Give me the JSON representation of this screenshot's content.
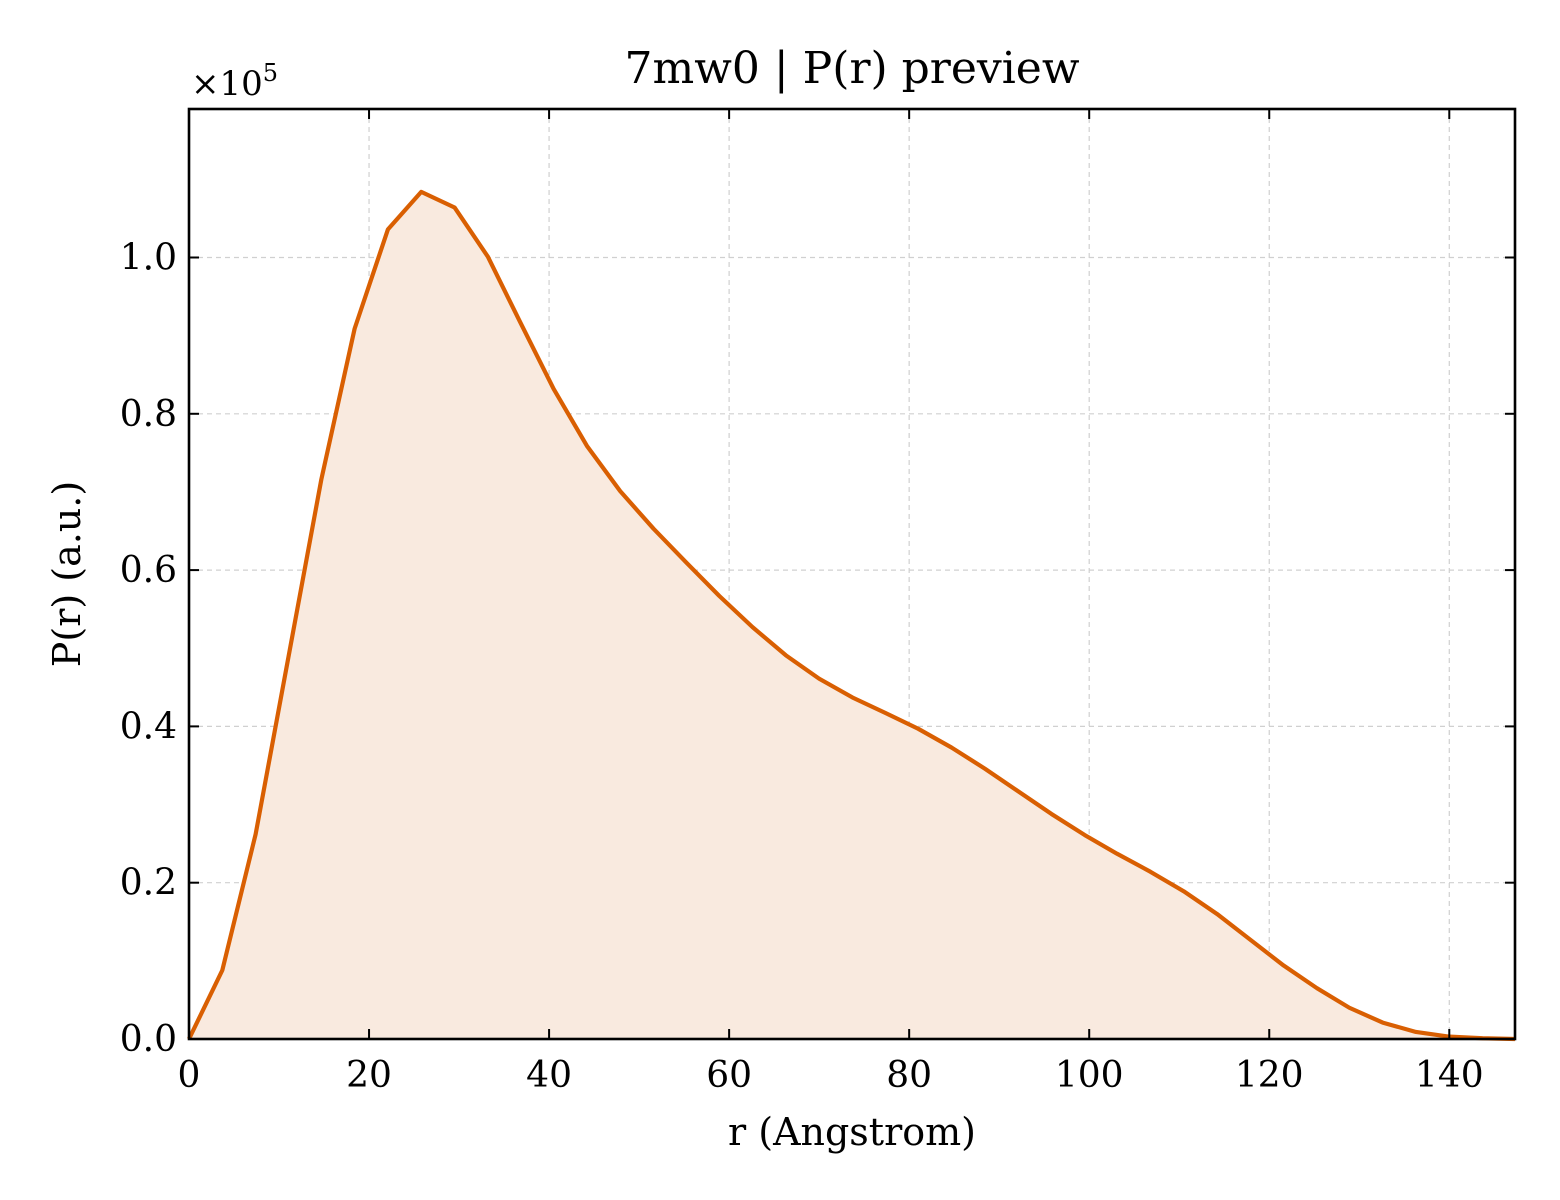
{
  "chart_data": {
    "type": "area",
    "title": "7mw0 | P(r) preview",
    "xlabel": "r (Angstrom)",
    "ylabel": "P(r) (a.u.)",
    "y_offset_label": "×10",
    "y_offset_exponent": "5",
    "xlim": [
      0,
      147.3
    ],
    "ylim": [
      0,
      1.19
    ],
    "x_ticks": [
      0,
      20,
      40,
      60,
      80,
      100,
      120,
      140
    ],
    "x_tick_labels": [
      "0",
      "20",
      "40",
      "60",
      "80",
      "100",
      "120",
      "140"
    ],
    "y_ticks": [
      0,
      0.2,
      0.4,
      0.6,
      0.8,
      1.0
    ],
    "y_tick_labels": [
      "0.0",
      "0.2",
      "0.4",
      "0.6",
      "0.8",
      "1.0"
    ],
    "grid": true,
    "line_color": "#d95f02",
    "fill_color": "#f9eadf",
    "series": [
      {
        "x": [
          0,
          3.7,
          7.4,
          11.1,
          14.7,
          18.4,
          22.1,
          25.8,
          29.5,
          33.2,
          36.8,
          40.5,
          44.2,
          47.9,
          51.6,
          55.3,
          58.9,
          62.6,
          66.3,
          70.0,
          73.7,
          77.4,
          81.0,
          84.7,
          88.4,
          92.1,
          95.8,
          99.5,
          103.1,
          106.8,
          110.5,
          114.2,
          117.9,
          121.6,
          125.3,
          128.9,
          132.6,
          136.3,
          140.0,
          143.7,
          147.3
        ],
        "values": [
          0.0,
          0.088,
          0.262,
          0.492,
          0.716,
          0.909,
          1.036,
          1.084,
          1.064,
          1.001,
          0.917,
          0.832,
          0.759,
          0.701,
          0.653,
          0.609,
          0.567,
          0.527,
          0.491,
          0.461,
          0.437,
          0.417,
          0.397,
          0.373,
          0.346,
          0.317,
          0.288,
          0.261,
          0.237,
          0.214,
          0.189,
          0.16,
          0.127,
          0.094,
          0.065,
          0.04,
          0.021,
          0.009,
          0.003,
          0.001,
          0.0
        ]
      }
    ]
  }
}
